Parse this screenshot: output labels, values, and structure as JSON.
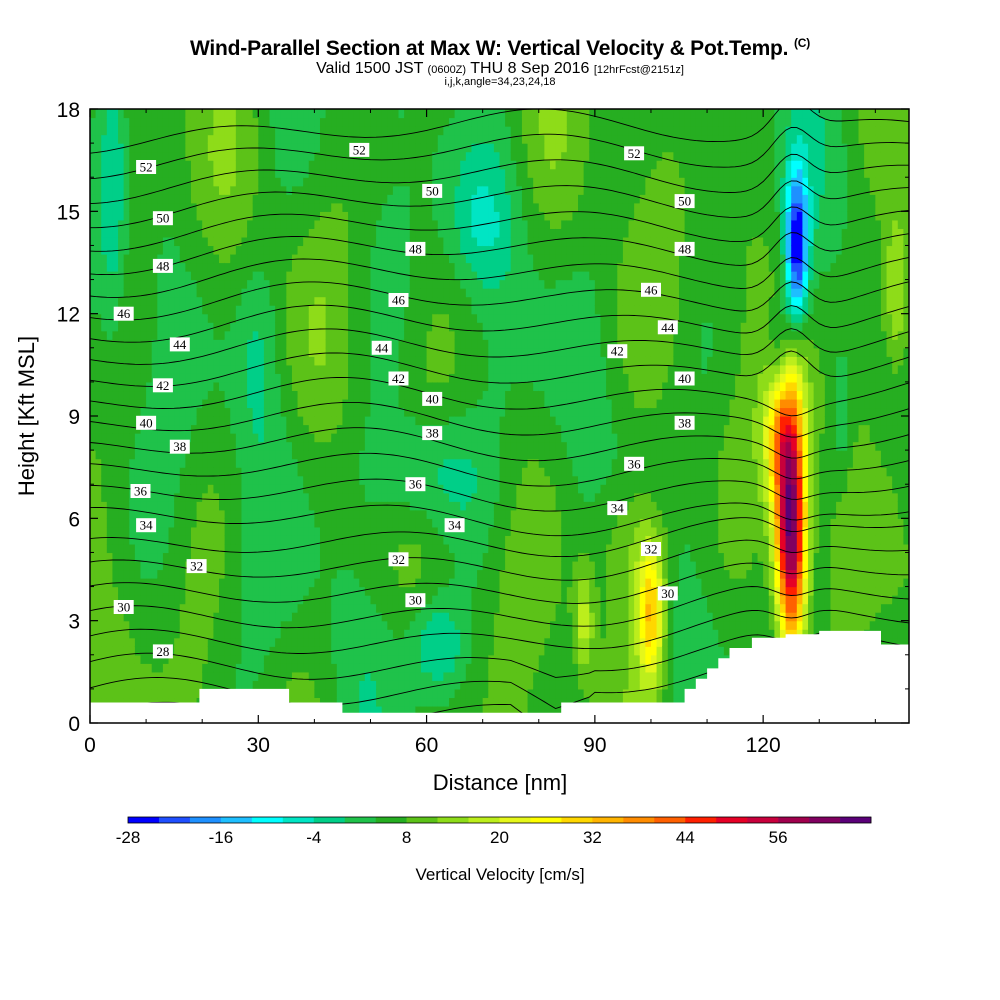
{
  "header": {
    "title": "Wind-Parallel Section at Max W: Vertical Velocity & Pot.Temp.",
    "title_mark": "(C)",
    "valid_prefix": "Valid 1500 JST",
    "valid_zulu": "(0600Z)",
    "valid_date": "THU 8 Sep 2016",
    "forecast": "[12hrFcst@2151z]",
    "indices": "i,j,k,angle=34,23,24,18"
  },
  "chart_data": {
    "type": "heatmap",
    "xlabel": "Distance [nm]",
    "ylabel": "Height [Kft MSL]",
    "xlim": [
      0,
      146
    ],
    "ylim": [
      0,
      18
    ],
    "x_ticks": [
      "0",
      "30",
      "60",
      "90",
      "120"
    ],
    "y_ticks": [
      "0",
      "3",
      "6",
      "9",
      "12",
      "15",
      "18"
    ],
    "colorbar": {
      "title": "Vertical Velocity [cm/s]",
      "min": -28,
      "max": 64,
      "step": 4,
      "tick_labels": [
        "-28",
        "-16",
        "-4",
        "8",
        "20",
        "32",
        "44",
        "56"
      ],
      "colors": [
        "#0000ff",
        "#1f4fff",
        "#1e90ff",
        "#1ebfff",
        "#00ffff",
        "#00e5c4",
        "#00cf88",
        "#1fc24a",
        "#26ae21",
        "#5cc218",
        "#8edc19",
        "#bcee1c",
        "#e5f71a",
        "#ffff00",
        "#ffd700",
        "#ffb400",
        "#ff8c00",
        "#ff6000",
        "#ff2000",
        "#e60026",
        "#c8003c",
        "#a0004d",
        "#800060",
        "#5a0078"
      ]
    },
    "velocity_cores": [
      {
        "x": 125,
        "y": 5.0,
        "w": 60,
        "kind": "updraft"
      },
      {
        "x": 100,
        "y": 2.8,
        "w": 34,
        "kind": "updraft"
      },
      {
        "x": 88,
        "y": 3.0,
        "w": 22,
        "kind": "updraft"
      },
      {
        "x": 126,
        "y": 13.8,
        "w": -26,
        "kind": "downdraft"
      },
      {
        "x": 4,
        "y": 16.0,
        "w": -4,
        "kind": "downdraft"
      },
      {
        "x": 60,
        "y": 7.5,
        "w": -6,
        "kind": "downdraft"
      },
      {
        "x": 62,
        "y": 2.0,
        "w": -5,
        "kind": "downdraft"
      },
      {
        "x": 72,
        "y": 14.5,
        "w": -4,
        "kind": "downdraft"
      },
      {
        "x": 143,
        "y": 12.5,
        "w": 20,
        "kind": "updraft"
      }
    ],
    "theta_contours": [
      28,
      29,
      30,
      31,
      32,
      33,
      34,
      35,
      36,
      37,
      38,
      39,
      40,
      41,
      42,
      43,
      44,
      45,
      46,
      47,
      48,
      49,
      50,
      51,
      52
    ],
    "theta_labels": [
      {
        "v": "52",
        "x": 10,
        "y": 16.3
      },
      {
        "v": "52",
        "x": 48,
        "y": 16.8
      },
      {
        "v": "52",
        "x": 97,
        "y": 16.7
      },
      {
        "v": "50",
        "x": 13,
        "y": 14.8
      },
      {
        "v": "50",
        "x": 61,
        "y": 15.6
      },
      {
        "v": "50",
        "x": 106,
        "y": 15.3
      },
      {
        "v": "48",
        "x": 13,
        "y": 13.4
      },
      {
        "v": "48",
        "x": 58,
        "y": 13.9
      },
      {
        "v": "48",
        "x": 106,
        "y": 13.9
      },
      {
        "v": "46",
        "x": 6,
        "y": 12.0
      },
      {
        "v": "46",
        "x": 55,
        "y": 12.4
      },
      {
        "v": "46",
        "x": 100,
        "y": 12.7
      },
      {
        "v": "44",
        "x": 16,
        "y": 11.1
      },
      {
        "v": "44",
        "x": 52,
        "y": 11.0
      },
      {
        "v": "44",
        "x": 103,
        "y": 11.6
      },
      {
        "v": "42",
        "x": 13,
        "y": 9.9
      },
      {
        "v": "42",
        "x": 55,
        "y": 10.1
      },
      {
        "v": "42",
        "x": 94,
        "y": 10.9
      },
      {
        "v": "40",
        "x": 10,
        "y": 8.8
      },
      {
        "v": "40",
        "x": 61,
        "y": 9.5
      },
      {
        "v": "40",
        "x": 106,
        "y": 10.1
      },
      {
        "v": "38",
        "x": 16,
        "y": 8.1
      },
      {
        "v": "38",
        "x": 61,
        "y": 8.5
      },
      {
        "v": "38",
        "x": 106,
        "y": 8.8
      },
      {
        "v": "36",
        "x": 9,
        "y": 6.8
      },
      {
        "v": "36",
        "x": 58,
        "y": 7.0
      },
      {
        "v": "36",
        "x": 97,
        "y": 7.6
      },
      {
        "v": "34",
        "x": 10,
        "y": 5.8
      },
      {
        "v": "34",
        "x": 65,
        "y": 5.8
      },
      {
        "v": "34",
        "x": 94,
        "y": 6.3
      },
      {
        "v": "32",
        "x": 19,
        "y": 4.6
      },
      {
        "v": "32",
        "x": 55,
        "y": 4.8
      },
      {
        "v": "32",
        "x": 100,
        "y": 5.1
      },
      {
        "v": "30",
        "x": 6,
        "y": 3.4
      },
      {
        "v": "30",
        "x": 58,
        "y": 3.6
      },
      {
        "v": "30",
        "x": 103,
        "y": 3.8
      },
      {
        "v": "28",
        "x": 13,
        "y": 2.1
      }
    ],
    "terrain": [
      [
        0,
        0.6
      ],
      [
        19.5,
        0.6
      ],
      [
        19.5,
        1.0
      ],
      [
        35.5,
        1.0
      ],
      [
        35.5,
        0.6
      ],
      [
        45,
        0.6
      ],
      [
        45,
        0.3
      ],
      [
        84,
        0.3
      ],
      [
        84,
        0.6
      ],
      [
        106,
        0.6
      ],
      [
        106,
        1.0
      ],
      [
        108,
        1.0
      ],
      [
        108,
        1.3
      ],
      [
        110,
        1.3
      ],
      [
        110,
        1.6
      ],
      [
        112,
        1.6
      ],
      [
        112,
        1.9
      ],
      [
        114,
        1.9
      ],
      [
        114,
        2.2
      ],
      [
        118,
        2.2
      ],
      [
        118,
        2.5
      ],
      [
        124,
        2.5
      ],
      [
        124,
        2.6
      ],
      [
        130,
        2.6
      ],
      [
        130,
        2.7
      ],
      [
        141,
        2.7
      ],
      [
        141,
        2.3
      ],
      [
        146,
        2.3
      ]
    ]
  }
}
